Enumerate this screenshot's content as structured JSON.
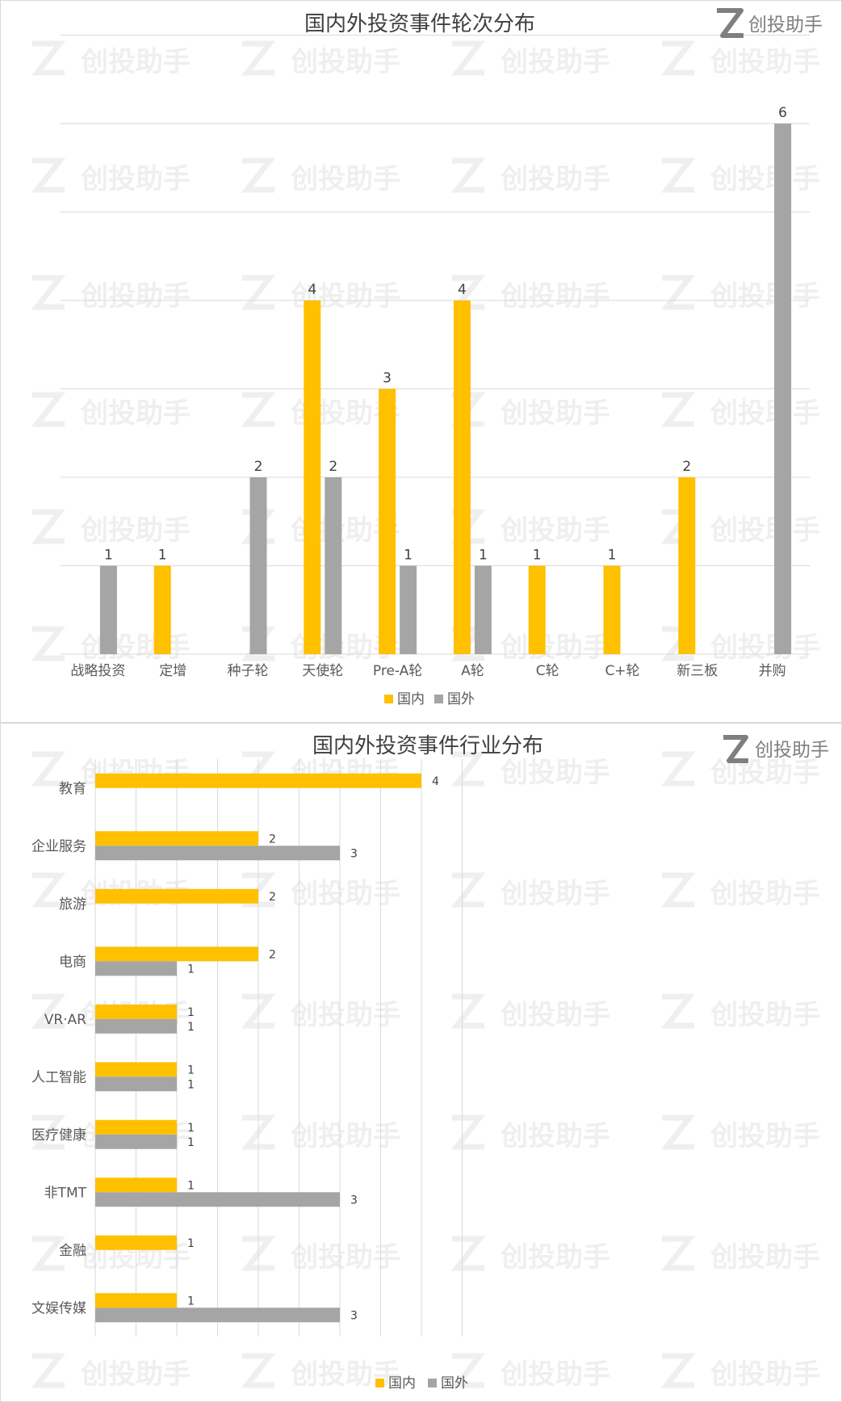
{
  "brand": {
    "name": "创投助手",
    "logo_letter": "Z"
  },
  "colors": {
    "domestic": "#FFC000",
    "foreign": "#A5A5A5",
    "grid": "#D9D9D9"
  },
  "chart_data": [
    {
      "type": "bar",
      "orientation": "vertical",
      "title": "国内外投资事件轮次分布",
      "categories": [
        "战略投资",
        "定增",
        "种子轮",
        "天使轮",
        "Pre-A轮",
        "A轮",
        "C轮",
        "C+轮",
        "新三板",
        "并购"
      ],
      "series": [
        {
          "name": "国内",
          "values": [
            null,
            1,
            null,
            4,
            3,
            4,
            1,
            1,
            2,
            null
          ]
        },
        {
          "name": "国外",
          "values": [
            1,
            null,
            2,
            2,
            1,
            1,
            null,
            null,
            null,
            6
          ]
        }
      ],
      "ylim": [
        0,
        7
      ],
      "grid": true,
      "legend": "bottom"
    },
    {
      "type": "bar",
      "orientation": "horizontal",
      "title": "国内外投资事件行业分布",
      "categories": [
        "教育",
        "企业服务",
        "旅游",
        "电商",
        "VR·AR",
        "人工智能",
        "医疗健康",
        "非TMT",
        "金融",
        "文娱传媒"
      ],
      "series": [
        {
          "name": "国内",
          "values": [
            4,
            2,
            2,
            2,
            1,
            1,
            1,
            1,
            1,
            1
          ]
        },
        {
          "name": "国外",
          "values": [
            null,
            3,
            null,
            1,
            1,
            1,
            1,
            3,
            null,
            3
          ]
        }
      ],
      "xlim": [
        0,
        4.5
      ],
      "grid": true,
      "legend": "bottom"
    }
  ]
}
